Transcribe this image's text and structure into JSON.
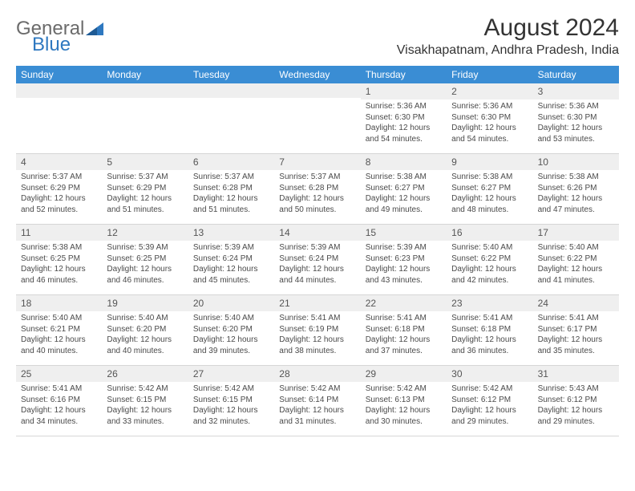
{
  "logo": {
    "text_general": "General",
    "text_blue": "Blue"
  },
  "header": {
    "month_title": "August 2024",
    "location": "Visakhapatnam, Andhra Pradesh, India"
  },
  "colors": {
    "header_bar": "#3a8dd4",
    "header_text": "#ffffff",
    "daynum_bg": "#efefef",
    "border": "#d6d6d6",
    "body_text": "#4a4a4a",
    "logo_gray": "#6b6b6b",
    "logo_blue": "#2e78c0"
  },
  "weekdays": [
    "Sunday",
    "Monday",
    "Tuesday",
    "Wednesday",
    "Thursday",
    "Friday",
    "Saturday"
  ],
  "layout": {
    "leading_blanks": 4,
    "columns": 7,
    "rows": 5
  },
  "days": [
    {
      "n": "1",
      "sunrise": "Sunrise: 5:36 AM",
      "sunset": "Sunset: 6:30 PM",
      "daylight": "Daylight: 12 hours and 54 minutes."
    },
    {
      "n": "2",
      "sunrise": "Sunrise: 5:36 AM",
      "sunset": "Sunset: 6:30 PM",
      "daylight": "Daylight: 12 hours and 54 minutes."
    },
    {
      "n": "3",
      "sunrise": "Sunrise: 5:36 AM",
      "sunset": "Sunset: 6:30 PM",
      "daylight": "Daylight: 12 hours and 53 minutes."
    },
    {
      "n": "4",
      "sunrise": "Sunrise: 5:37 AM",
      "sunset": "Sunset: 6:29 PM",
      "daylight": "Daylight: 12 hours and 52 minutes."
    },
    {
      "n": "5",
      "sunrise": "Sunrise: 5:37 AM",
      "sunset": "Sunset: 6:29 PM",
      "daylight": "Daylight: 12 hours and 51 minutes."
    },
    {
      "n": "6",
      "sunrise": "Sunrise: 5:37 AM",
      "sunset": "Sunset: 6:28 PM",
      "daylight": "Daylight: 12 hours and 51 minutes."
    },
    {
      "n": "7",
      "sunrise": "Sunrise: 5:37 AM",
      "sunset": "Sunset: 6:28 PM",
      "daylight": "Daylight: 12 hours and 50 minutes."
    },
    {
      "n": "8",
      "sunrise": "Sunrise: 5:38 AM",
      "sunset": "Sunset: 6:27 PM",
      "daylight": "Daylight: 12 hours and 49 minutes."
    },
    {
      "n": "9",
      "sunrise": "Sunrise: 5:38 AM",
      "sunset": "Sunset: 6:27 PM",
      "daylight": "Daylight: 12 hours and 48 minutes."
    },
    {
      "n": "10",
      "sunrise": "Sunrise: 5:38 AM",
      "sunset": "Sunset: 6:26 PM",
      "daylight": "Daylight: 12 hours and 47 minutes."
    },
    {
      "n": "11",
      "sunrise": "Sunrise: 5:38 AM",
      "sunset": "Sunset: 6:25 PM",
      "daylight": "Daylight: 12 hours and 46 minutes."
    },
    {
      "n": "12",
      "sunrise": "Sunrise: 5:39 AM",
      "sunset": "Sunset: 6:25 PM",
      "daylight": "Daylight: 12 hours and 46 minutes."
    },
    {
      "n": "13",
      "sunrise": "Sunrise: 5:39 AM",
      "sunset": "Sunset: 6:24 PM",
      "daylight": "Daylight: 12 hours and 45 minutes."
    },
    {
      "n": "14",
      "sunrise": "Sunrise: 5:39 AM",
      "sunset": "Sunset: 6:24 PM",
      "daylight": "Daylight: 12 hours and 44 minutes."
    },
    {
      "n": "15",
      "sunrise": "Sunrise: 5:39 AM",
      "sunset": "Sunset: 6:23 PM",
      "daylight": "Daylight: 12 hours and 43 minutes."
    },
    {
      "n": "16",
      "sunrise": "Sunrise: 5:40 AM",
      "sunset": "Sunset: 6:22 PM",
      "daylight": "Daylight: 12 hours and 42 minutes."
    },
    {
      "n": "17",
      "sunrise": "Sunrise: 5:40 AM",
      "sunset": "Sunset: 6:22 PM",
      "daylight": "Daylight: 12 hours and 41 minutes."
    },
    {
      "n": "18",
      "sunrise": "Sunrise: 5:40 AM",
      "sunset": "Sunset: 6:21 PM",
      "daylight": "Daylight: 12 hours and 40 minutes."
    },
    {
      "n": "19",
      "sunrise": "Sunrise: 5:40 AM",
      "sunset": "Sunset: 6:20 PM",
      "daylight": "Daylight: 12 hours and 40 minutes."
    },
    {
      "n": "20",
      "sunrise": "Sunrise: 5:40 AM",
      "sunset": "Sunset: 6:20 PM",
      "daylight": "Daylight: 12 hours and 39 minutes."
    },
    {
      "n": "21",
      "sunrise": "Sunrise: 5:41 AM",
      "sunset": "Sunset: 6:19 PM",
      "daylight": "Daylight: 12 hours and 38 minutes."
    },
    {
      "n": "22",
      "sunrise": "Sunrise: 5:41 AM",
      "sunset": "Sunset: 6:18 PM",
      "daylight": "Daylight: 12 hours and 37 minutes."
    },
    {
      "n": "23",
      "sunrise": "Sunrise: 5:41 AM",
      "sunset": "Sunset: 6:18 PM",
      "daylight": "Daylight: 12 hours and 36 minutes."
    },
    {
      "n": "24",
      "sunrise": "Sunrise: 5:41 AM",
      "sunset": "Sunset: 6:17 PM",
      "daylight": "Daylight: 12 hours and 35 minutes."
    },
    {
      "n": "25",
      "sunrise": "Sunrise: 5:41 AM",
      "sunset": "Sunset: 6:16 PM",
      "daylight": "Daylight: 12 hours and 34 minutes."
    },
    {
      "n": "26",
      "sunrise": "Sunrise: 5:42 AM",
      "sunset": "Sunset: 6:15 PM",
      "daylight": "Daylight: 12 hours and 33 minutes."
    },
    {
      "n": "27",
      "sunrise": "Sunrise: 5:42 AM",
      "sunset": "Sunset: 6:15 PM",
      "daylight": "Daylight: 12 hours and 32 minutes."
    },
    {
      "n": "28",
      "sunrise": "Sunrise: 5:42 AM",
      "sunset": "Sunset: 6:14 PM",
      "daylight": "Daylight: 12 hours and 31 minutes."
    },
    {
      "n": "29",
      "sunrise": "Sunrise: 5:42 AM",
      "sunset": "Sunset: 6:13 PM",
      "daylight": "Daylight: 12 hours and 30 minutes."
    },
    {
      "n": "30",
      "sunrise": "Sunrise: 5:42 AM",
      "sunset": "Sunset: 6:12 PM",
      "daylight": "Daylight: 12 hours and 29 minutes."
    },
    {
      "n": "31",
      "sunrise": "Sunrise: 5:43 AM",
      "sunset": "Sunset: 6:12 PM",
      "daylight": "Daylight: 12 hours and 29 minutes."
    }
  ]
}
